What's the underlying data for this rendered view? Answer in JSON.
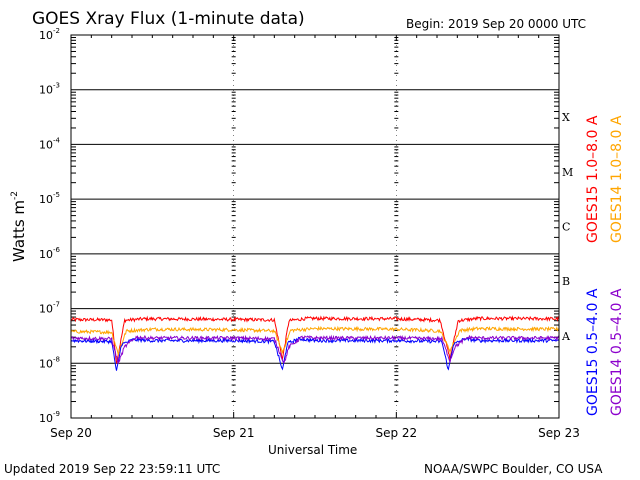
{
  "chart_data": {
    "type": "line",
    "title": "GOES Xray Flux (1-minute data)",
    "begin_label": "Begin:  2019 Sep 20 0000 UTC",
    "xlabel": "Universal Time",
    "ylabel": "Watts m",
    "ylabel_exponent": "-2",
    "x_ticks": [
      "Sep 20",
      "Sep 21",
      "Sep 22",
      "Sep 23"
    ],
    "x_range_days": [
      0,
      3
    ],
    "y_scale": "log",
    "ylim": [
      1e-09,
      0.01
    ],
    "y_ticks": [
      {
        "base": "10",
        "exp": "-2"
      },
      {
        "base": "10",
        "exp": "-3"
      },
      {
        "base": "10",
        "exp": "-4"
      },
      {
        "base": "10",
        "exp": "-5"
      },
      {
        "base": "10",
        "exp": "-6"
      },
      {
        "base": "10",
        "exp": "-7"
      },
      {
        "base": "10",
        "exp": "-8"
      },
      {
        "base": "10",
        "exp": "-9"
      }
    ],
    "flare_classes": [
      "X",
      "M",
      "C",
      "B",
      "A"
    ],
    "legend_right": [
      {
        "label": "GOES15 1.0–8.0 A",
        "color": "#ff0000"
      },
      {
        "label": "GOES14 1.0–8.0 A",
        "color": "#ffa500"
      },
      {
        "label": "GOES15 0.5–4.0 A",
        "color": "#0000ff"
      },
      {
        "label": "GOES14 0.5–4.0 A",
        "color": "#8b00cc"
      }
    ],
    "series": [
      {
        "name": "GOES15 1.0–8.0 A",
        "color": "#ff0000",
        "x": [
          0,
          0.25,
          0.28,
          0.33,
          0.45,
          0.8,
          1.25,
          1.3,
          1.34,
          1.45,
          2.0,
          2.27,
          2.33,
          2.38,
          2.5,
          3.0
        ],
        "y": [
          6.3e-08,
          6.2e-08,
          1e-08,
          6.1e-08,
          6.5e-08,
          6.4e-08,
          6.2e-08,
          1.2e-08,
          6e-08,
          6.6e-08,
          6.5e-08,
          6.1e-08,
          1.2e-08,
          6e-08,
          6.6e-08,
          6.5e-08
        ]
      },
      {
        "name": "GOES14 1.0–8.0 A",
        "color": "#ffa500",
        "x": [
          0,
          0.25,
          0.29,
          0.34,
          0.5,
          1.0,
          1.25,
          1.3,
          1.35,
          1.5,
          2.0,
          2.27,
          2.33,
          2.39,
          2.5,
          3.0
        ],
        "y": [
          3.8e-08,
          3.7e-08,
          1.5e-08,
          3.9e-08,
          4.2e-08,
          4.1e-08,
          3.9e-08,
          1.6e-08,
          4e-08,
          4.3e-08,
          4.2e-08,
          3.9e-08,
          1.7e-08,
          4e-08,
          4.3e-08,
          4.2e-08
        ]
      },
      {
        "name": "GOES15 0.5–4.0 A",
        "color": "#0000ff",
        "x": [
          0,
          0.25,
          0.28,
          0.31,
          0.38,
          0.5,
          1.0,
          1.25,
          1.3,
          1.33,
          1.4,
          1.5,
          2.0,
          2.28,
          2.32,
          2.35,
          2.42,
          2.5,
          3.0
        ],
        "y": [
          2.6e-08,
          2.5e-08,
          7e-09,
          2.2e-08,
          2.7e-08,
          2.6e-08,
          2.6e-08,
          2.5e-08,
          7.5e-09,
          2.3e-08,
          2.8e-08,
          2.6e-08,
          2.6e-08,
          2.5e-08,
          7.5e-09,
          2.2e-08,
          2.8e-08,
          2.6e-08,
          2.6e-08
        ]
      },
      {
        "name": "GOES14 0.5–4.0 A",
        "color": "#8b00cc",
        "x": [
          0,
          0.25,
          0.29,
          0.33,
          0.4,
          0.5,
          1.0,
          1.25,
          1.31,
          1.34,
          1.42,
          1.5,
          2.0,
          2.28,
          2.33,
          2.36,
          2.44,
          2.5,
          3.0
        ],
        "y": [
          2.9e-08,
          2.8e-08,
          1e-08,
          2e-08,
          3e-08,
          2.9e-08,
          2.9e-08,
          2.8e-08,
          1e-08,
          2e-08,
          3e-08,
          2.9e-08,
          2.9e-08,
          2.8e-08,
          1.1e-08,
          2e-08,
          3e-08,
          2.9e-08,
          2.9e-08
        ]
      }
    ]
  },
  "footer": {
    "updated": "Updated 2019 Sep 22 23:59:11 UTC",
    "credit": "NOAA/SWPC Boulder, CO USA"
  }
}
